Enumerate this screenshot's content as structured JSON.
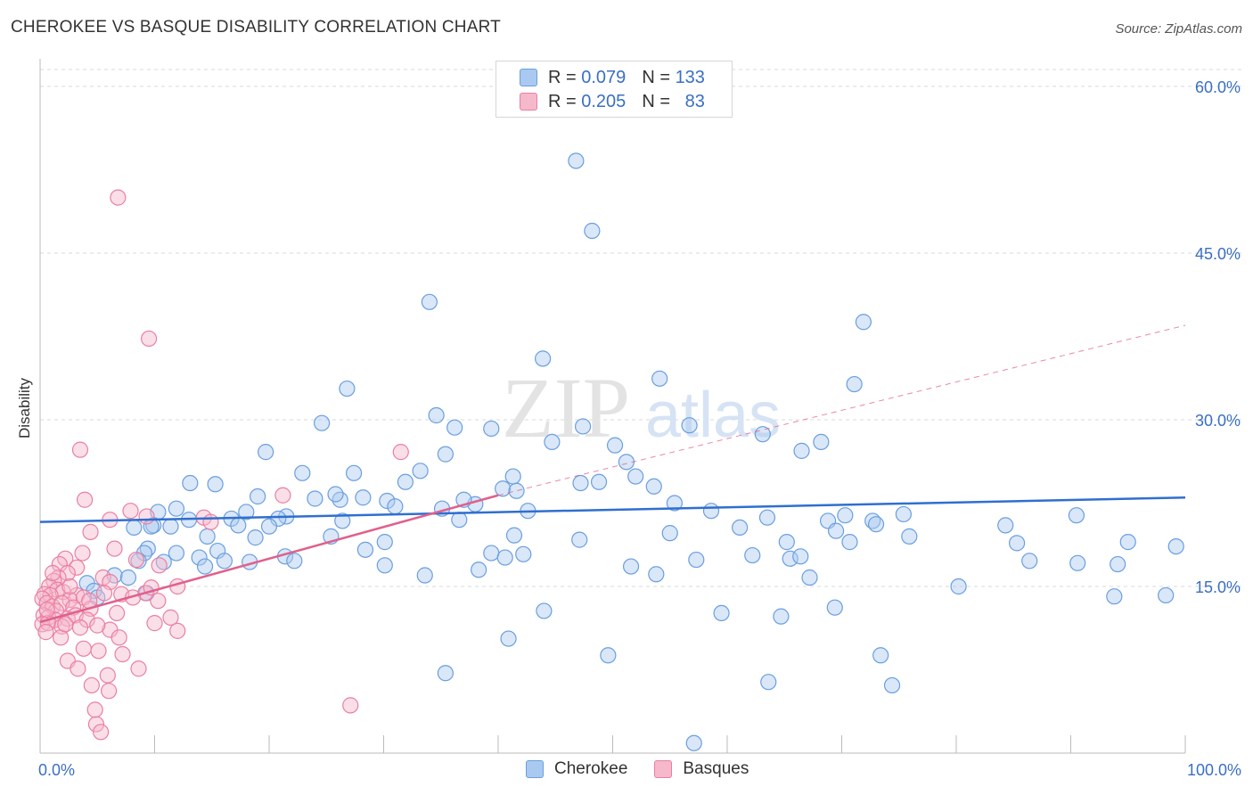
{
  "title": "CHEROKEE VS BASQUE DISABILITY CORRELATION CHART",
  "source": "Source: ZipAtlas.com",
  "watermark": {
    "zip": "ZIP",
    "atlas": "atlas"
  },
  "legend_top": [
    {
      "r_label": "R =",
      "r_value": "0.079",
      "n_label": "N =",
      "n_value": "133"
    },
    {
      "r_label": "R =",
      "r_value": "0.205",
      "n_label": "N =",
      "n_value": "83"
    }
  ],
  "legend_bottom": [
    "Cherokee",
    "Basques"
  ],
  "colors": {
    "cherokee_fill": "#aac9f0",
    "cherokee_stroke": "#6a9ee0",
    "cherokee_line": "#2f6fd0",
    "basques_fill": "#f6b8cb",
    "basques_stroke": "#ea7fa0",
    "basques_line": "#e0608c",
    "axis_label": "#3a6fc4",
    "grid": "#d9d9d9"
  },
  "chart_data": {
    "type": "scatter",
    "title": "CHEROKEE VS BASQUE DISABILITY CORRELATION CHART",
    "xlabel": "",
    "ylabel": "Disability",
    "xlim": [
      0,
      100
    ],
    "ylim": [
      0,
      62
    ],
    "x_tick_labels": [
      "0.0%",
      "100.0%"
    ],
    "y_ticks": [
      15,
      30,
      45,
      60
    ],
    "y_tick_labels": [
      "15.0%",
      "30.0%",
      "45.0%",
      "60.0%"
    ],
    "grid": true,
    "legend_position": "top-center",
    "series": [
      {
        "name": "Cherokee",
        "R": 0.079,
        "N": 133,
        "trend": {
          "x": [
            0,
            100
          ],
          "y": [
            20.8,
            23.0
          ]
        },
        "points": [
          [
            46.8,
            53.3
          ],
          [
            48.2,
            47.0
          ],
          [
            34.0,
            40.6
          ],
          [
            71.9,
            38.8
          ],
          [
            43.9,
            35.5
          ],
          [
            54.1,
            33.7
          ],
          [
            71.1,
            33.2
          ],
          [
            26.8,
            32.8
          ],
          [
            34.6,
            30.4
          ],
          [
            24.6,
            29.7
          ],
          [
            36.2,
            29.3
          ],
          [
            47.4,
            29.4
          ],
          [
            39.4,
            29.2
          ],
          [
            56.7,
            29.5
          ],
          [
            63.1,
            28.7
          ],
          [
            44.7,
            28.0
          ],
          [
            50.2,
            27.7
          ],
          [
            66.5,
            27.2
          ],
          [
            68.2,
            28.0
          ],
          [
            19.7,
            27.1
          ],
          [
            35.4,
            26.9
          ],
          [
            51.2,
            26.2
          ],
          [
            22.9,
            25.2
          ],
          [
            27.4,
            25.2
          ],
          [
            33.2,
            25.4
          ],
          [
            41.3,
            24.9
          ],
          [
            52.0,
            24.9
          ],
          [
            31.9,
            24.4
          ],
          [
            13.1,
            24.3
          ],
          [
            15.3,
            24.2
          ],
          [
            48.8,
            24.4
          ],
          [
            47.2,
            24.3
          ],
          [
            40.4,
            23.8
          ],
          [
            53.6,
            24.0
          ],
          [
            41.6,
            23.6
          ],
          [
            19.0,
            23.1
          ],
          [
            24.0,
            22.9
          ],
          [
            28.2,
            23.0
          ],
          [
            38.0,
            22.4
          ],
          [
            42.6,
            21.8
          ],
          [
            26.2,
            22.8
          ],
          [
            25.8,
            23.3
          ],
          [
            30.3,
            22.7
          ],
          [
            31.0,
            22.2
          ],
          [
            35.1,
            22.0
          ],
          [
            37.0,
            22.8
          ],
          [
            11.9,
            22.0
          ],
          [
            10.3,
            21.7
          ],
          [
            18.0,
            21.7
          ],
          [
            21.5,
            21.3
          ],
          [
            26.4,
            20.9
          ],
          [
            16.7,
            21.1
          ],
          [
            13.0,
            21.0
          ],
          [
            9.9,
            20.5
          ],
          [
            20.8,
            21.1
          ],
          [
            17.3,
            20.5
          ],
          [
            20.0,
            20.4
          ],
          [
            36.6,
            21.0
          ],
          [
            55.4,
            22.5
          ],
          [
            58.6,
            21.8
          ],
          [
            63.5,
            21.2
          ],
          [
            72.7,
            20.9
          ],
          [
            75.4,
            21.5
          ],
          [
            90.5,
            21.4
          ],
          [
            70.3,
            21.4
          ],
          [
            68.8,
            20.9
          ],
          [
            61.1,
            20.3
          ],
          [
            84.3,
            20.5
          ],
          [
            73.0,
            20.6
          ],
          [
            69.5,
            20.0
          ],
          [
            8.2,
            20.3
          ],
          [
            9.7,
            20.4
          ],
          [
            11.4,
            20.4
          ],
          [
            14.6,
            19.5
          ],
          [
            18.8,
            19.4
          ],
          [
            25.4,
            19.5
          ],
          [
            30.1,
            19.0
          ],
          [
            41.4,
            19.6
          ],
          [
            47.1,
            19.2
          ],
          [
            55.0,
            19.8
          ],
          [
            65.2,
            19.0
          ],
          [
            70.7,
            19.0
          ],
          [
            75.9,
            19.5
          ],
          [
            85.3,
            18.9
          ],
          [
            95.0,
            19.0
          ],
          [
            99.2,
            18.6
          ],
          [
            9.4,
            18.4
          ],
          [
            9.1,
            18.0
          ],
          [
            11.9,
            18.0
          ],
          [
            15.5,
            18.2
          ],
          [
            13.9,
            17.6
          ],
          [
            21.4,
            17.7
          ],
          [
            28.4,
            18.3
          ],
          [
            39.4,
            18.0
          ],
          [
            40.6,
            17.6
          ],
          [
            42.2,
            17.9
          ],
          [
            57.3,
            17.4
          ],
          [
            62.2,
            17.8
          ],
          [
            65.5,
            17.5
          ],
          [
            66.4,
            17.7
          ],
          [
            86.4,
            17.3
          ],
          [
            94.1,
            17.0
          ],
          [
            8.6,
            17.3
          ],
          [
            10.8,
            17.2
          ],
          [
            14.4,
            16.8
          ],
          [
            16.1,
            17.3
          ],
          [
            18.3,
            17.2
          ],
          [
            22.2,
            17.3
          ],
          [
            30.1,
            16.9
          ],
          [
            33.6,
            16.0
          ],
          [
            38.3,
            16.5
          ],
          [
            51.6,
            16.8
          ],
          [
            53.8,
            16.1
          ],
          [
            67.2,
            15.8
          ],
          [
            80.2,
            15.0
          ],
          [
            93.8,
            14.1
          ],
          [
            6.5,
            16.0
          ],
          [
            7.7,
            15.8
          ],
          [
            4.1,
            15.3
          ],
          [
            4.7,
            14.6
          ],
          [
            5.0,
            14.0
          ],
          [
            9.3,
            14.4
          ],
          [
            44.0,
            12.8
          ],
          [
            64.7,
            12.3
          ],
          [
            69.4,
            13.1
          ],
          [
            63.6,
            6.4
          ],
          [
            74.4,
            6.1
          ],
          [
            40.9,
            10.3
          ],
          [
            49.6,
            8.8
          ],
          [
            35.4,
            7.2
          ],
          [
            73.4,
            8.8
          ],
          [
            98.3,
            14.2
          ],
          [
            90.6,
            17.1
          ],
          [
            59.5,
            12.6
          ],
          [
            57.1,
            0.9
          ]
        ]
      },
      {
        "name": "Basques",
        "R": 0.205,
        "N": 83,
        "trend": {
          "x": [
            0,
            40
          ],
          "y": [
            11.8,
            23.2
          ],
          "extended_dashed_to": {
            "x": 100,
            "y": 38.5
          }
        },
        "points": [
          [
            6.8,
            50.0
          ],
          [
            9.5,
            37.3
          ],
          [
            3.5,
            27.3
          ],
          [
            3.9,
            22.8
          ],
          [
            7.9,
            21.8
          ],
          [
            9.3,
            21.3
          ],
          [
            6.1,
            21.0
          ],
          [
            4.4,
            19.9
          ],
          [
            10.4,
            16.9
          ],
          [
            8.4,
            17.4
          ],
          [
            6.5,
            18.4
          ],
          [
            3.7,
            18.0
          ],
          [
            2.2,
            17.5
          ],
          [
            1.7,
            17.0
          ],
          [
            3.2,
            16.7
          ],
          [
            2.4,
            16.2
          ],
          [
            1.6,
            15.8
          ],
          [
            1.2,
            15.5
          ],
          [
            5.5,
            15.8
          ],
          [
            6.1,
            15.4
          ],
          [
            0.8,
            15.0
          ],
          [
            1.5,
            14.7
          ],
          [
            2.0,
            14.5
          ],
          [
            3.2,
            14.2
          ],
          [
            0.4,
            14.3
          ],
          [
            0.9,
            14.2
          ],
          [
            2.6,
            13.8
          ],
          [
            3.8,
            14.0
          ],
          [
            5.6,
            14.4
          ],
          [
            7.1,
            14.3
          ],
          [
            0.2,
            13.9
          ],
          [
            0.6,
            13.5
          ],
          [
            1.1,
            13.2
          ],
          [
            1.9,
            13.5
          ],
          [
            2.9,
            13.1
          ],
          [
            4.4,
            13.0
          ],
          [
            6.7,
            12.6
          ],
          [
            10.3,
            13.7
          ],
          [
            11.4,
            12.2
          ],
          [
            1.4,
            12.8
          ],
          [
            0.3,
            12.4
          ],
          [
            0.7,
            12.2
          ],
          [
            1.3,
            12.0
          ],
          [
            2.4,
            12.1
          ],
          [
            3.1,
            12.4
          ],
          [
            4.1,
            12.0
          ],
          [
            0.2,
            11.6
          ],
          [
            0.7,
            11.7
          ],
          [
            1.9,
            11.4
          ],
          [
            3.5,
            11.3
          ],
          [
            6.1,
            11.1
          ],
          [
            0.5,
            10.9
          ],
          [
            1.8,
            10.4
          ],
          [
            3.8,
            9.4
          ],
          [
            5.1,
            9.2
          ],
          [
            7.2,
            8.9
          ],
          [
            2.4,
            8.3
          ],
          [
            3.3,
            7.6
          ],
          [
            5.9,
            7.0
          ],
          [
            8.6,
            7.6
          ],
          [
            4.5,
            6.1
          ],
          [
            6.0,
            5.6
          ],
          [
            4.9,
            2.6
          ],
          [
            5.3,
            1.9
          ],
          [
            4.8,
            3.9
          ],
          [
            9.2,
            14.4
          ],
          [
            10.0,
            11.7
          ],
          [
            12.0,
            11.0
          ],
          [
            8.1,
            14.0
          ],
          [
            9.7,
            14.9
          ],
          [
            5.0,
            11.5
          ],
          [
            4.3,
            13.7
          ],
          [
            1.1,
            16.2
          ],
          [
            2.6,
            15.0
          ],
          [
            27.1,
            4.3
          ],
          [
            31.5,
            27.1
          ],
          [
            21.2,
            23.2
          ],
          [
            14.3,
            21.2
          ],
          [
            14.9,
            20.8
          ],
          [
            12.0,
            15.0
          ],
          [
            6.9,
            10.4
          ],
          [
            0.6,
            12.9
          ],
          [
            2.2,
            11.6
          ]
        ]
      }
    ]
  }
}
